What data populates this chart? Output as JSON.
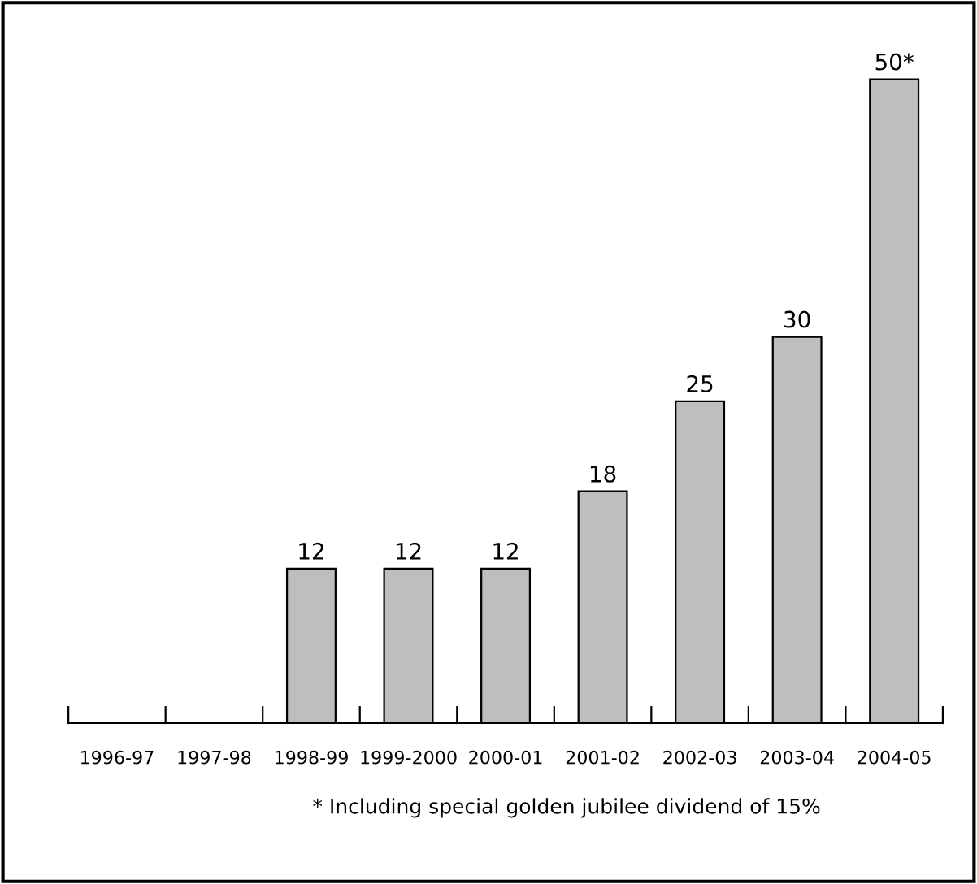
{
  "chart_data": {
    "type": "bar",
    "categories": [
      "1996-97",
      "1997-98",
      "1998-99",
      "1999-2000",
      "2000-01",
      "2001-02",
      "2002-03",
      "2003-04",
      "2004-05"
    ],
    "values": [
      0,
      0,
      12,
      12,
      12,
      18,
      25,
      30,
      50
    ],
    "value_labels": [
      null,
      null,
      "12",
      "12",
      "12",
      "18",
      "25",
      "30",
      "50*"
    ],
    "color": "#bebec0",
    "annotations": [
      "* Including special golden jubilee dividend of 15%"
    ]
  }
}
